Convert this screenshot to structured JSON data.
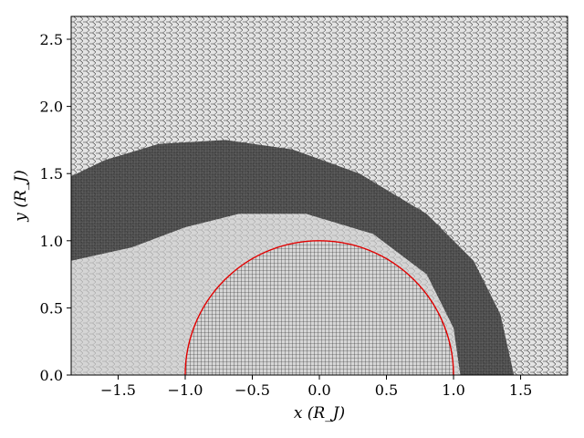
{
  "chart_data": {
    "type": "mesh-plot",
    "xlabel": "x (R_J)",
    "ylabel": "y (R_J)",
    "xlim": [
      -1.85,
      1.85
    ],
    "ylim": [
      0.0,
      2.67
    ],
    "x_ticks": [
      -1.5,
      -1.0,
      -0.5,
      0.0,
      0.5,
      1.0,
      1.5
    ],
    "x_tick_labels": [
      "−1.5",
      "−1.0",
      "−0.5",
      "0.0",
      "0.5",
      "1.0",
      "1.5"
    ],
    "y_ticks": [
      0.0,
      0.5,
      1.0,
      1.5,
      2.0,
      2.5
    ],
    "y_tick_labels": [
      "0.0",
      "0.5",
      "1.0",
      "1.5",
      "2.0",
      "2.5"
    ],
    "grid": false,
    "series": [
      {
        "type": "circle",
        "center": [
          0.0,
          0.0
        ],
        "radius": 1.0,
        "color": "#e00000"
      }
    ],
    "colors": {
      "mesh_lines": "#000000",
      "background": "#d9d9d9",
      "dense_region": "#3a3a3a"
    }
  }
}
